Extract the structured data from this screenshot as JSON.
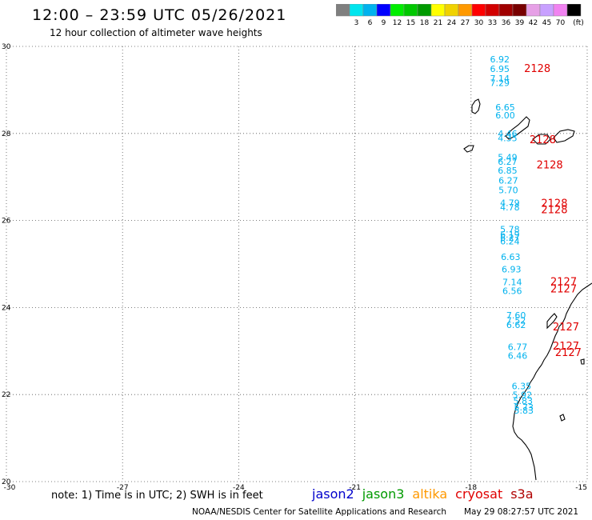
{
  "header": {
    "title": "12:00 – 23:59 UTC 05/26/2021",
    "subtitle": "12 hour collection of altimeter wave heights"
  },
  "color_scale": {
    "unit": "(ft)",
    "bins": [
      {
        "color": "#7f7f7f",
        "label": ""
      },
      {
        "color": "#00e5ee",
        "label": "3"
      },
      {
        "color": "#00b2ee",
        "label": "6"
      },
      {
        "color": "#0000ff",
        "label": "9"
      },
      {
        "color": "#00ee00",
        "label": "12"
      },
      {
        "color": "#00c800",
        "label": "15"
      },
      {
        "color": "#009a00",
        "label": "18"
      },
      {
        "color": "#ffff00",
        "label": "21"
      },
      {
        "color": "#f0d200",
        "label": "24"
      },
      {
        "color": "#ff9900",
        "label": "27"
      },
      {
        "color": "#ff0000",
        "label": "30"
      },
      {
        "color": "#d20000",
        "label": "33"
      },
      {
        "color": "#a00000",
        "label": "36"
      },
      {
        "color": "#780000",
        "label": "39"
      },
      {
        "color": "#e6a0e6",
        "label": "42"
      },
      {
        "color": "#c8a0ff",
        "label": "45"
      },
      {
        "color": "#f082f0",
        "label": "70"
      },
      {
        "color": "#000000",
        "label": ""
      }
    ]
  },
  "map": {
    "lon_range": [
      -30,
      -15
    ],
    "lat_range": [
      20,
      30
    ],
    "x_ticks": [
      {
        "value": -30,
        "label": "-30"
      },
      {
        "value": -27,
        "label": "-27"
      },
      {
        "value": -24,
        "label": "-24"
      },
      {
        "value": -21,
        "label": "-21"
      },
      {
        "value": -18,
        "label": "-18"
      },
      {
        "value": -15,
        "label": "-15"
      }
    ],
    "y_ticks": [
      {
        "value": 30,
        "label": "30"
      },
      {
        "value": 28,
        "label": "28"
      },
      {
        "value": 26,
        "label": "26"
      },
      {
        "value": 24,
        "label": "24"
      },
      {
        "value": 22,
        "label": "22"
      },
      {
        "value": 20,
        "label": "20"
      }
    ],
    "grid": true,
    "observation_color": "#00b2ee",
    "pass_label_color": "#e00000",
    "observations": [
      {
        "lon": -17.51,
        "lat": 29.63,
        "value": "6.92"
      },
      {
        "lon": -17.51,
        "lat": 29.41,
        "value": "6.95"
      },
      {
        "lon": -17.51,
        "lat": 29.19,
        "value": "7.14"
      },
      {
        "lon": -17.51,
        "lat": 29.09,
        "value": "7.29"
      },
      {
        "lon": -17.37,
        "lat": 28.53,
        "value": "6.65"
      },
      {
        "lon": -17.37,
        "lat": 28.35,
        "value": "6.00"
      },
      {
        "lon": -17.31,
        "lat": 27.92,
        "value": "4.46"
      },
      {
        "lon": -17.31,
        "lat": 27.82,
        "value": "4.35"
      },
      {
        "lon": -17.31,
        "lat": 27.38,
        "value": "5.49"
      },
      {
        "lon": -17.31,
        "lat": 27.28,
        "value": "6.27"
      },
      {
        "lon": -17.31,
        "lat": 27.08,
        "value": "6.85"
      },
      {
        "lon": -17.29,
        "lat": 26.85,
        "value": "6.27"
      },
      {
        "lon": -17.29,
        "lat": 26.63,
        "value": "5.70"
      },
      {
        "lon": -17.25,
        "lat": 26.33,
        "value": "4.79"
      },
      {
        "lon": -17.25,
        "lat": 26.23,
        "value": "4.78"
      },
      {
        "lon": -17.25,
        "lat": 25.73,
        "value": "5.78"
      },
      {
        "lon": -17.25,
        "lat": 25.61,
        "value": "6.19"
      },
      {
        "lon": -17.25,
        "lat": 25.53,
        "value": "6.27"
      },
      {
        "lon": -17.25,
        "lat": 25.45,
        "value": "6.24"
      },
      {
        "lon": -17.23,
        "lat": 25.09,
        "value": "6.63"
      },
      {
        "lon": -17.21,
        "lat": 24.81,
        "value": "6.93"
      },
      {
        "lon": -17.19,
        "lat": 24.51,
        "value": "7.14"
      },
      {
        "lon": -17.19,
        "lat": 24.31,
        "value": "6.56"
      },
      {
        "lon": -17.09,
        "lat": 23.75,
        "value": "7.60"
      },
      {
        "lon": -17.09,
        "lat": 23.63,
        "value": "7.52"
      },
      {
        "lon": -17.09,
        "lat": 23.53,
        "value": "6.62"
      },
      {
        "lon": -17.05,
        "lat": 23.02,
        "value": "6.77"
      },
      {
        "lon": -17.05,
        "lat": 22.82,
        "value": "6.46"
      },
      {
        "lon": -16.95,
        "lat": 22.12,
        "value": "6.35"
      },
      {
        "lon": -16.93,
        "lat": 21.92,
        "value": "5.92"
      },
      {
        "lon": -16.91,
        "lat": 21.78,
        "value": "5.83"
      },
      {
        "lon": -16.89,
        "lat": 21.64,
        "value": "5.73"
      },
      {
        "lon": -16.89,
        "lat": 21.56,
        "value": "5.83"
      }
    ],
    "pass_labels": [
      {
        "lon": -16.63,
        "lat": 29.41,
        "text": "2128"
      },
      {
        "lon": -16.49,
        "lat": 27.78,
        "text": "2128"
      },
      {
        "lon": -16.31,
        "lat": 27.2,
        "text": "2128"
      },
      {
        "lon": -16.19,
        "lat": 26.31,
        "text": "2128"
      },
      {
        "lon": -16.19,
        "lat": 26.17,
        "text": "2128"
      },
      {
        "lon": -15.95,
        "lat": 24.51,
        "text": "2127"
      },
      {
        "lon": -15.95,
        "lat": 24.35,
        "text": "2127"
      },
      {
        "lon": -15.89,
        "lat": 23.47,
        "text": "2127"
      },
      {
        "lon": -15.89,
        "lat": 23.03,
        "text": "2127"
      },
      {
        "lon": -15.83,
        "lat": 22.89,
        "text": "2127"
      }
    ]
  },
  "footer": {
    "note": "note: 1) Time is in UTC; 2) SWH is in feet",
    "satellites": [
      {
        "name": "jason2",
        "color": "#0000cc"
      },
      {
        "name": "jason3",
        "color": "#009a00"
      },
      {
        "name": "altika",
        "color": "#ff9900"
      },
      {
        "name": "cryosat",
        "color": "#e00000"
      },
      {
        "name": "s3a",
        "color": "#b00000"
      }
    ],
    "credit": "NOAA/NESDIS Center for Satellite Applications and Research",
    "timestamp": "May 29 08:27:57 UTC 2021"
  }
}
